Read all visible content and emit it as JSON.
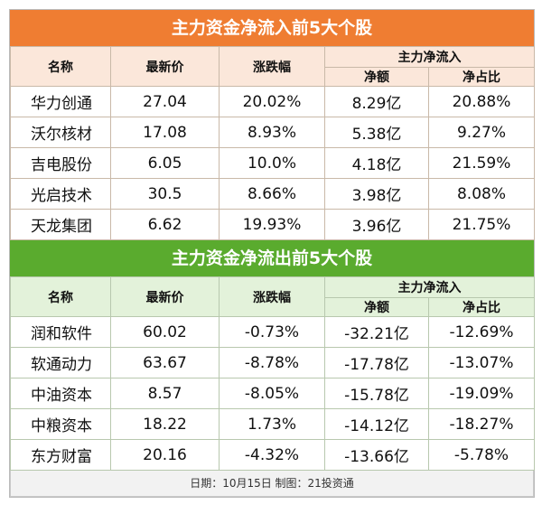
{
  "inflow": {
    "title": "主力资金净流入前5大个股",
    "headers": {
      "name": "名称",
      "price": "最新价",
      "change": "涨跌幅",
      "group": "主力净流入",
      "amount": "净额",
      "ratio": "净占比"
    },
    "rows": [
      {
        "name": "华力创通",
        "price": "27.04",
        "change": "20.02%",
        "amount": "8.29亿",
        "ratio": "20.88%"
      },
      {
        "name": "沃尔核材",
        "price": "17.08",
        "change": "8.93%",
        "amount": "5.38亿",
        "ratio": "9.27%"
      },
      {
        "name": "吉电股份",
        "price": "6.05",
        "change": "10.0%",
        "amount": "4.18亿",
        "ratio": "21.59%"
      },
      {
        "name": "光启技术",
        "price": "30.5",
        "change": "8.66%",
        "amount": "3.98亿",
        "ratio": "8.08%"
      },
      {
        "name": "天龙集团",
        "price": "6.62",
        "change": "19.93%",
        "amount": "3.96亿",
        "ratio": "21.75%"
      }
    ]
  },
  "outflow": {
    "title": "主力资金净流出前5大个股",
    "headers": {
      "name": "名称",
      "price": "最新价",
      "change": "涨跌幅",
      "group": "主力净流入",
      "amount": "净额",
      "ratio": "净占比"
    },
    "rows": [
      {
        "name": "润和软件",
        "price": "60.02",
        "change": "-0.73%",
        "amount": "-32.21亿",
        "ratio": "-12.69%"
      },
      {
        "name": "软通动力",
        "price": "63.67",
        "change": "-8.78%",
        "amount": "-17.78亿",
        "ratio": "-13.07%"
      },
      {
        "name": "中油资本",
        "price": "8.57",
        "change": "-8.05%",
        "amount": "-15.78亿",
        "ratio": "-19.09%"
      },
      {
        "name": "中粮资本",
        "price": "18.22",
        "change": "1.73%",
        "amount": "-14.12亿",
        "ratio": "-18.27%"
      },
      {
        "name": "东方财富",
        "price": "20.16",
        "change": "-4.32%",
        "amount": "-13.66亿",
        "ratio": "-5.78%"
      }
    ]
  },
  "footer": "日期：10月15日 制图：21投资通",
  "colors": {
    "inflow_header": "#ef7d32",
    "outflow_header": "#5aab2e",
    "inflow_subheader": "#fbe7da",
    "outflow_subheader": "#e3f2da"
  }
}
